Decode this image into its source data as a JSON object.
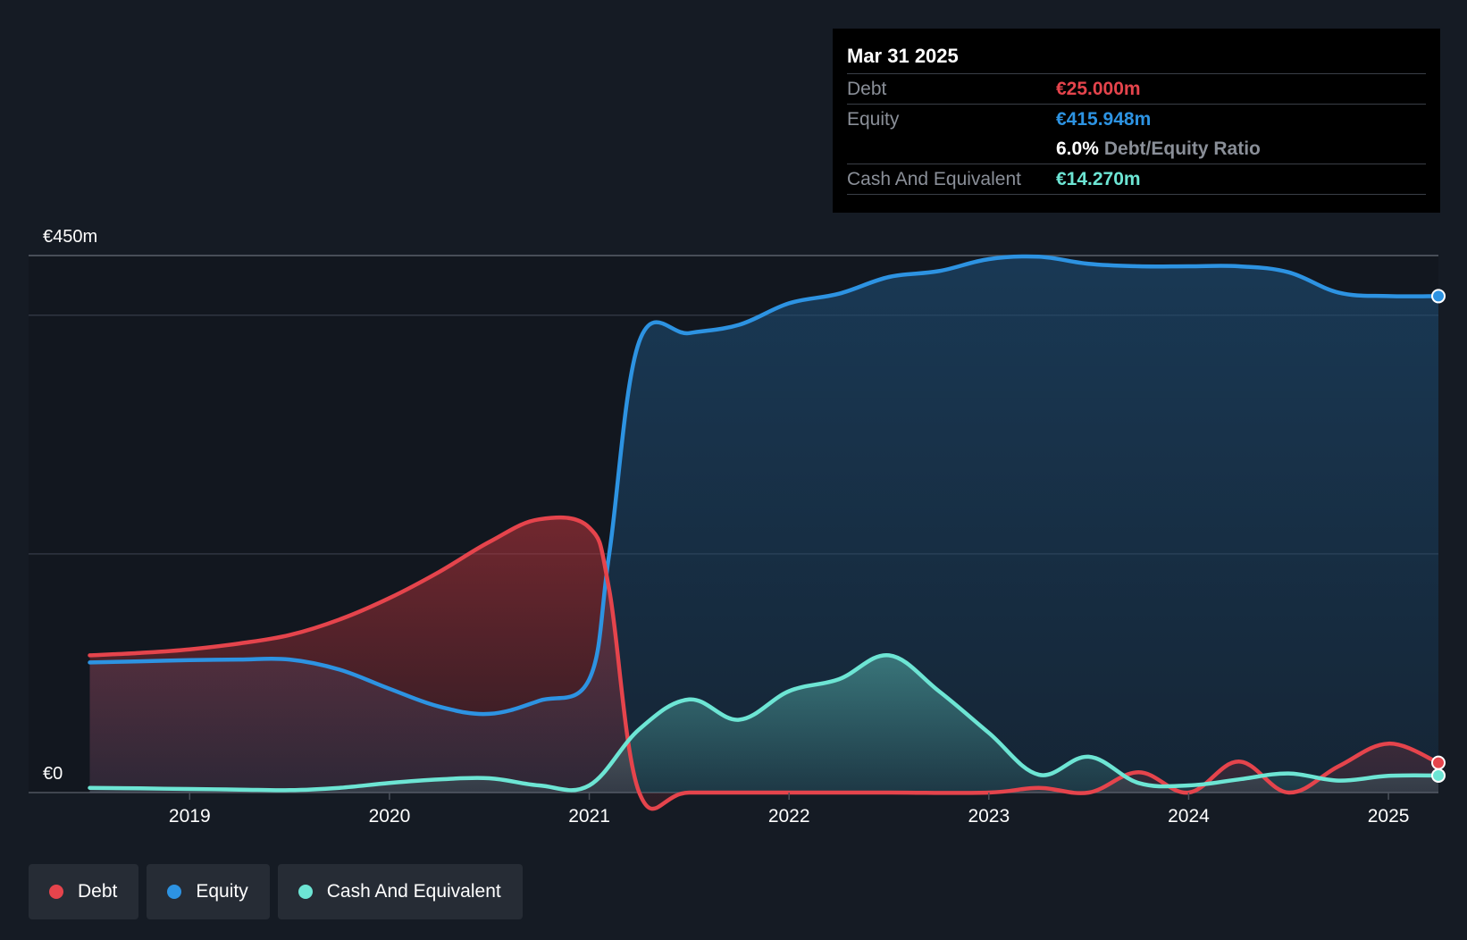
{
  "tooltip": {
    "date": "Mar 31 2025",
    "debt_label": "Debt",
    "debt_value": "€25.000m",
    "equity_label": "Equity",
    "equity_value": "€415.948m",
    "ratio_value": "6.0%",
    "ratio_label": "Debt/Equity Ratio",
    "cash_label": "Cash And Equivalent",
    "cash_value": "€14.270m"
  },
  "legend": {
    "debt": "Debt",
    "equity": "Equity",
    "cash": "Cash And Equivalent"
  },
  "colors": {
    "debt": "#e5444c",
    "equity": "#2d93e2",
    "cash": "#6de5d4",
    "background": "#151b24"
  },
  "chart_data": {
    "type": "area",
    "title": "",
    "xlabel": "",
    "ylabel": "",
    "ylim": [
      0,
      450
    ],
    "xlim": [
      2018.48,
      2025.25
    ],
    "y_tick_labels": [
      {
        "value": 450,
        "label": "€450m"
      },
      {
        "value": 0,
        "label": "€0"
      }
    ],
    "gridlines": [
      0,
      200,
      400,
      450
    ],
    "x_ticks": [
      {
        "value": 2019,
        "label": "2019"
      },
      {
        "value": 2020,
        "label": "2020"
      },
      {
        "value": 2021,
        "label": "2021"
      },
      {
        "value": 2022,
        "label": "2022"
      },
      {
        "value": 2023,
        "label": "2023"
      },
      {
        "value": 2024,
        "label": "2024"
      },
      {
        "value": 2025,
        "label": "2025"
      }
    ],
    "series": [
      {
        "name": "Equity",
        "key": "equity",
        "points": [
          [
            2018.5,
            109
          ],
          [
            2018.75,
            110
          ],
          [
            2019.0,
            111
          ],
          [
            2019.25,
            111.5
          ],
          [
            2019.5,
            111.5
          ],
          [
            2019.75,
            103
          ],
          [
            2020.0,
            87
          ],
          [
            2020.25,
            72
          ],
          [
            2020.5,
            66
          ],
          [
            2020.75,
            77
          ],
          [
            2021.0,
            95
          ],
          [
            2021.1,
            200
          ],
          [
            2021.25,
            378
          ],
          [
            2021.5,
            385
          ],
          [
            2021.75,
            392
          ],
          [
            2022.0,
            410
          ],
          [
            2022.25,
            418
          ],
          [
            2022.5,
            432
          ],
          [
            2022.75,
            437
          ],
          [
            2023.0,
            447
          ],
          [
            2023.25,
            449
          ],
          [
            2023.5,
            443
          ],
          [
            2023.75,
            441
          ],
          [
            2024.0,
            441
          ],
          [
            2024.25,
            441
          ],
          [
            2024.5,
            436
          ],
          [
            2024.75,
            419
          ],
          [
            2025.0,
            416
          ],
          [
            2025.25,
            416
          ]
        ]
      },
      {
        "name": "Debt",
        "key": "debt",
        "points": [
          [
            2018.5,
            115
          ],
          [
            2018.75,
            117
          ],
          [
            2019.0,
            120
          ],
          [
            2019.25,
            125
          ],
          [
            2019.5,
            132
          ],
          [
            2019.75,
            145
          ],
          [
            2020.0,
            163
          ],
          [
            2020.25,
            185
          ],
          [
            2020.5,
            210
          ],
          [
            2020.75,
            229
          ],
          [
            2021.0,
            222
          ],
          [
            2021.1,
            170
          ],
          [
            2021.25,
            0
          ],
          [
            2021.5,
            0
          ],
          [
            2022.0,
            0
          ],
          [
            2022.5,
            0
          ],
          [
            2023.0,
            0
          ],
          [
            2023.25,
            4
          ],
          [
            2023.5,
            0
          ],
          [
            2023.75,
            17
          ],
          [
            2024.0,
            0
          ],
          [
            2024.25,
            26
          ],
          [
            2024.5,
            0
          ],
          [
            2024.75,
            22
          ],
          [
            2025.0,
            41
          ],
          [
            2025.25,
            25
          ]
        ]
      },
      {
        "name": "Cash And Equivalent",
        "key": "cash",
        "points": [
          [
            2018.5,
            4
          ],
          [
            2018.75,
            3.5
          ],
          [
            2019.0,
            3
          ],
          [
            2019.25,
            2.5
          ],
          [
            2019.5,
            2
          ],
          [
            2019.75,
            4
          ],
          [
            2020.0,
            8
          ],
          [
            2020.25,
            11
          ],
          [
            2020.5,
            12
          ],
          [
            2020.75,
            6
          ],
          [
            2021.0,
            6
          ],
          [
            2021.25,
            53
          ],
          [
            2021.5,
            78
          ],
          [
            2021.75,
            61
          ],
          [
            2022.0,
            85
          ],
          [
            2022.25,
            95
          ],
          [
            2022.5,
            115
          ],
          [
            2022.75,
            85
          ],
          [
            2023.0,
            50
          ],
          [
            2023.25,
            15
          ],
          [
            2023.5,
            30
          ],
          [
            2023.75,
            8
          ],
          [
            2024.0,
            6
          ],
          [
            2024.25,
            11
          ],
          [
            2024.5,
            16
          ],
          [
            2024.75,
            10
          ],
          [
            2025.0,
            14
          ],
          [
            2025.25,
            14.27
          ]
        ]
      }
    ]
  }
}
